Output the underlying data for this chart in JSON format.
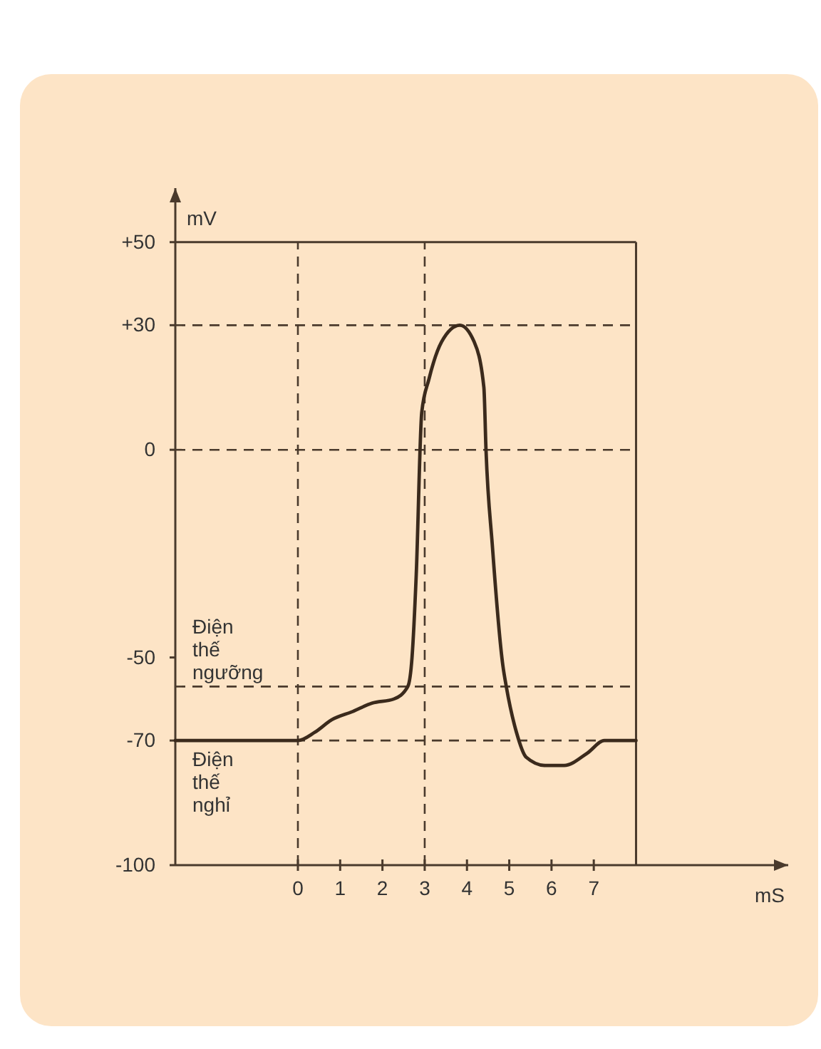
{
  "chart_data": {
    "type": "line",
    "xlabel": "mS",
    "ylabel": "mV",
    "color": "#3b2a1c",
    "line_style": "solid",
    "marker": "none",
    "x": [
      -2.9,
      -1.5,
      0,
      0.4,
      0.8,
      1.3,
      1.75,
      2.27,
      2.6,
      2.7,
      2.8,
      2.93,
      3.1,
      3.4,
      3.83,
      4.17,
      4.4,
      4.45,
      4.6,
      4.85,
      4.93,
      5.17,
      5.4,
      5.85,
      6.3,
      6.85,
      7.25,
      8
    ],
    "values": [
      -70,
      -70,
      -70,
      -68,
      -65,
      -63,
      -61,
      -60,
      -57,
      -50,
      -30,
      9,
      17,
      26,
      30,
      26,
      15,
      0,
      -23,
      -52,
      -57,
      -68,
      -74,
      -76,
      -76,
      -73,
      -70,
      -70
    ],
    "xlim": [
      -2.9,
      11.6
    ],
    "ylim": [
      -100,
      63
    ],
    "xticks": [
      0,
      1,
      2,
      3,
      4,
      5,
      6,
      7
    ],
    "yticks": [
      {
        "value": 50,
        "label": "+50"
      },
      {
        "value": 30,
        "label": "+30"
      },
      0,
      -50,
      -70,
      -100
    ],
    "ref_lines": [
      {
        "axis": "y",
        "value": 50,
        "label": null,
        "line_style": "solid"
      },
      {
        "axis": "x",
        "value": 8,
        "label": null,
        "line_style": "solid"
      },
      {
        "axis": "y",
        "value": 30,
        "label": null,
        "line_style": "dashed"
      },
      {
        "axis": "y",
        "value": 0,
        "label": null,
        "line_style": "dashed"
      },
      {
        "axis": "y",
        "value": -57,
        "label": "Điện thế ngưỡng",
        "line_style": "dashed"
      },
      {
        "axis": "y",
        "value": -70,
        "label": "Điện thế nghỉ",
        "line_style": "dashed"
      },
      {
        "axis": "x",
        "value": 0,
        "label": null,
        "line_style": "dashed"
      },
      {
        "axis": "x",
        "value": 3,
        "label": null,
        "line_style": "dashed"
      }
    ]
  }
}
